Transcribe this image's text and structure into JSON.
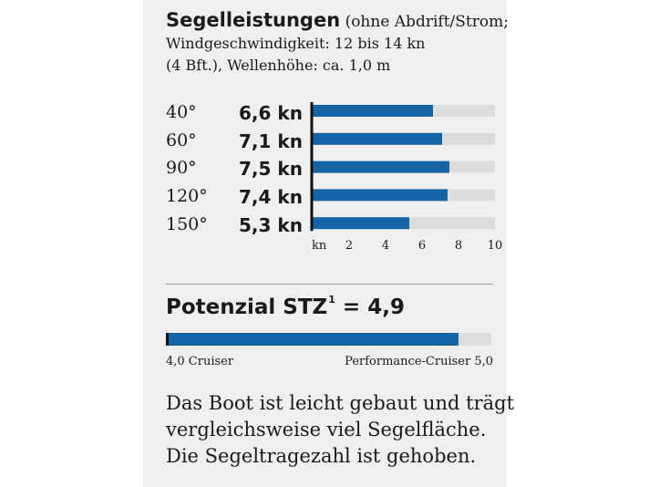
{
  "title": {
    "heading": "Segelleistungen",
    "line1_rest": "(ohne Abdrift/Strom;",
    "line2": "Windgeschwindigkeit: 12 bis 14 kn",
    "line3": "(4 Bft.), Wellenhöhe: ca. 1,0 m"
  },
  "colors": {
    "bar": "#1565a6",
    "track": "#dcdcdc",
    "axis": "#111111",
    "panel": "#efefef"
  },
  "chart_data": {
    "type": "bar",
    "orientation": "horizontal",
    "categories": [
      "40°",
      "60°",
      "90°",
      "120°",
      "150°"
    ],
    "value_labels": [
      "6,6 kn",
      "7,1 kn",
      "7,5 kn",
      "7,4 kn",
      "5,3 kn"
    ],
    "values": [
      6.6,
      7.1,
      7.5,
      7.4,
      5.3
    ],
    "xlim": [
      0,
      10
    ],
    "x_unit_label": "kn",
    "x_ticks": [
      "2",
      "4",
      "6",
      "8",
      "10"
    ],
    "grid": false,
    "legend": "none"
  },
  "potential": {
    "label": "Potenzial STZ",
    "superscript": "1",
    "value_text": "= 4,9",
    "value": 4.9,
    "min": 4.0,
    "max": 5.0,
    "left_label": "4,0  Cruiser",
    "right_label": "Performance-Cruiser  5,0"
  },
  "description": [
    "Das Boot ist leicht gebaut und trägt",
    "vergleichsweise viel Segelfläche.",
    "Die Segeltragezahl ist gehoben."
  ]
}
